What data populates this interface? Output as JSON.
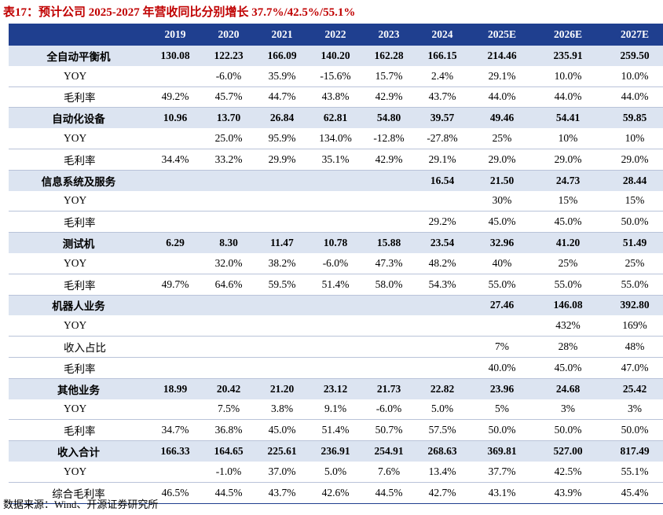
{
  "title": "表17：预计公司 2025-2027 年营收同比分别增长 37.7%/42.5%/55.1%",
  "header": [
    "",
    "2019",
    "2020",
    "2021",
    "2022",
    "2023",
    "2024",
    "2025E",
    "2026E",
    "2027E"
  ],
  "rows": [
    {
      "kind": "seg",
      "label": "全自动平衡机",
      "values": [
        "130.08",
        "122.23",
        "166.09",
        "140.20",
        "162.28",
        "166.15",
        "214.46",
        "235.91",
        "259.50"
      ]
    },
    {
      "kind": "sub",
      "label": "YOY",
      "values": [
        "",
        "-6.0%",
        "35.9%",
        "-15.6%",
        "15.7%",
        "2.4%",
        "29.1%",
        "10.0%",
        "10.0%"
      ]
    },
    {
      "kind": "sub",
      "label": "毛利率",
      "values": [
        "49.2%",
        "45.7%",
        "44.7%",
        "43.8%",
        "42.9%",
        "43.7%",
        "44.0%",
        "44.0%",
        "44.0%"
      ]
    },
    {
      "kind": "seg",
      "label": "自动化设备",
      "values": [
        "10.96",
        "13.70",
        "26.84",
        "62.81",
        "54.80",
        "39.57",
        "49.46",
        "54.41",
        "59.85"
      ]
    },
    {
      "kind": "sub",
      "label": "YOY",
      "values": [
        "",
        "25.0%",
        "95.9%",
        "134.0%",
        "-12.8%",
        "-27.8%",
        "25%",
        "10%",
        "10%"
      ]
    },
    {
      "kind": "sub",
      "label": "毛利率",
      "values": [
        "34.4%",
        "33.2%",
        "29.9%",
        "35.1%",
        "42.9%",
        "29.1%",
        "29.0%",
        "29.0%",
        "29.0%"
      ]
    },
    {
      "kind": "seg",
      "label": "信息系统及服务",
      "values": [
        "",
        "",
        "",
        "",
        "",
        "16.54",
        "21.50",
        "24.73",
        "28.44"
      ]
    },
    {
      "kind": "sub",
      "label": "YOY",
      "values": [
        "",
        "",
        "",
        "",
        "",
        "",
        "30%",
        "15%",
        "15%"
      ]
    },
    {
      "kind": "sub",
      "label": "毛利率",
      "values": [
        "",
        "",
        "",
        "",
        "",
        "29.2%",
        "45.0%",
        "45.0%",
        "50.0%"
      ]
    },
    {
      "kind": "seg",
      "label": "测试机",
      "values": [
        "6.29",
        "8.30",
        "11.47",
        "10.78",
        "15.88",
        "23.54",
        "32.96",
        "41.20",
        "51.49"
      ]
    },
    {
      "kind": "sub",
      "label": "YOY",
      "values": [
        "",
        "32.0%",
        "38.2%",
        "-6.0%",
        "47.3%",
        "48.2%",
        "40%",
        "25%",
        "25%"
      ]
    },
    {
      "kind": "sub",
      "label": "毛利率",
      "values": [
        "49.7%",
        "64.6%",
        "59.5%",
        "51.4%",
        "58.0%",
        "54.3%",
        "55.0%",
        "55.0%",
        "55.0%"
      ]
    },
    {
      "kind": "seg",
      "label": "机器人业务",
      "values": [
        "",
        "",
        "",
        "",
        "",
        "",
        "27.46",
        "146.08",
        "392.80"
      ]
    },
    {
      "kind": "sub",
      "label": "YOY",
      "values": [
        "",
        "",
        "",
        "",
        "",
        "",
        "",
        "432%",
        "169%"
      ]
    },
    {
      "kind": "sub",
      "label": "收入占比",
      "values": [
        "",
        "",
        "",
        "",
        "",
        "",
        "7%",
        "28%",
        "48%"
      ]
    },
    {
      "kind": "sub",
      "label": "毛利率",
      "values": [
        "",
        "",
        "",
        "",
        "",
        "",
        "40.0%",
        "45.0%",
        "47.0%"
      ]
    },
    {
      "kind": "seg",
      "label": "其他业务",
      "values": [
        "18.99",
        "20.42",
        "21.20",
        "23.12",
        "21.73",
        "22.82",
        "23.96",
        "24.68",
        "25.42"
      ]
    },
    {
      "kind": "sub",
      "label": "YOY",
      "values": [
        "",
        "7.5%",
        "3.8%",
        "9.1%",
        "-6.0%",
        "5.0%",
        "5%",
        "3%",
        "3%"
      ]
    },
    {
      "kind": "sub",
      "label": "毛利率",
      "values": [
        "34.7%",
        "36.8%",
        "45.0%",
        "51.4%",
        "50.7%",
        "57.5%",
        "50.0%",
        "50.0%",
        "50.0%"
      ]
    },
    {
      "kind": "seg",
      "label": "收入合计",
      "values": [
        "166.33",
        "164.65",
        "225.61",
        "236.91",
        "254.91",
        "268.63",
        "369.81",
        "527.00",
        "817.49"
      ]
    },
    {
      "kind": "sub",
      "label": "YOY",
      "values": [
        "",
        "-1.0%",
        "37.0%",
        "5.0%",
        "7.6%",
        "13.4%",
        "37.7%",
        "42.5%",
        "55.1%"
      ]
    },
    {
      "kind": "subc",
      "label": "综合毛利率",
      "values": [
        "46.5%",
        "44.5%",
        "43.7%",
        "42.6%",
        "44.5%",
        "42.7%",
        "43.1%",
        "43.9%",
        "45.4%"
      ]
    }
  ],
  "source": "数据来源：Wind、开源证券研究所",
  "colors": {
    "header_bg": "#1f3f8f",
    "segment_bg": "#dce4f1",
    "title": "#c00000"
  }
}
